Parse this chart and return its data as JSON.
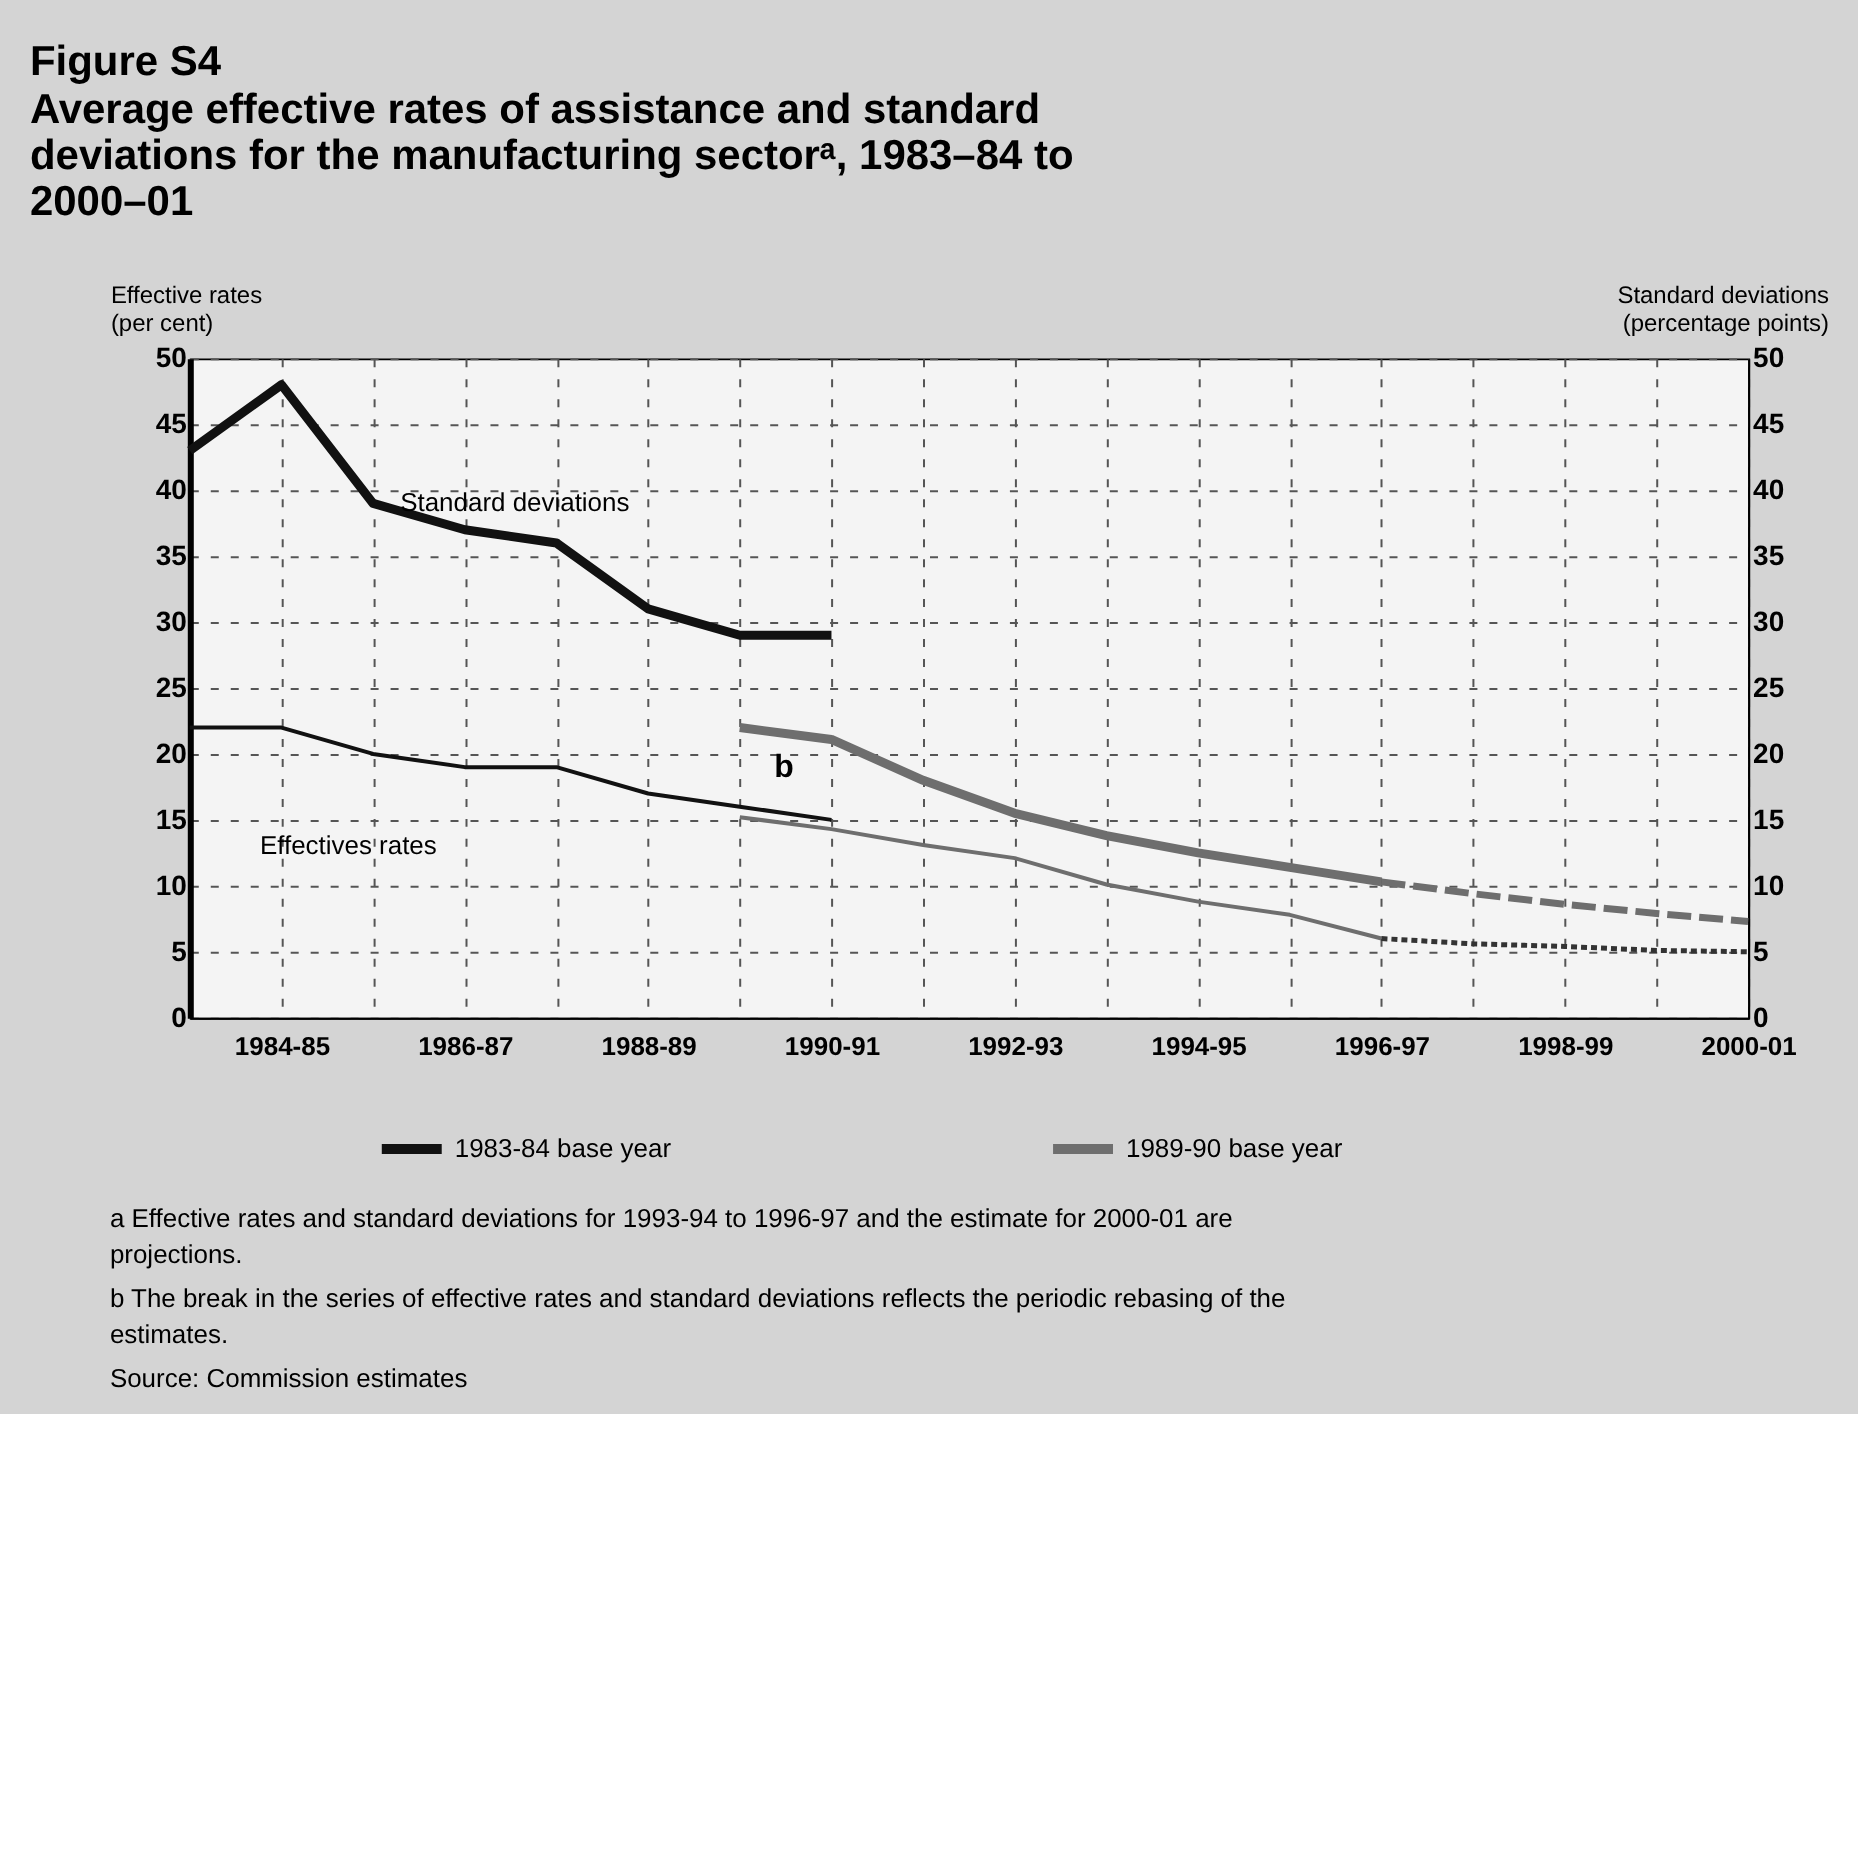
{
  "chart_data": {
    "type": "line",
    "title": "Figure S4",
    "subtitle": "Average effective rates of assistance and standard deviations for the manufacturing sectorᵃ, 1983–84 to 2000–01",
    "ylabel": "Effective rates (per cent)",
    "y2label": "Standard deviations (percentage points)",
    "categories": [
      null,
      "1984-85",
      null,
      "1986-87",
      null,
      "1988-89",
      null,
      "1990-91",
      null,
      "1992-93",
      null,
      "1994-95",
      null,
      "1996-97",
      null,
      "1998-99",
      null,
      "2000-01"
    ],
    "series": [
      {
        "name": "1983-84 base year",
        "color": "#111111",
        "line_style": "solid",
        "values": [
          43,
          48,
          39,
          37,
          36,
          31,
          29,
          29,
          null,
          null,
          null,
          null,
          null,
          null,
          null,
          null,
          null,
          null
        ]
      },
      {
        "color": "#111111",
        "line_style": "solid",
        "values": [
          22,
          22,
          20,
          19,
          19,
          17,
          16,
          15,
          null,
          null,
          null,
          null,
          null,
          null,
          null,
          null,
          null,
          null
        ]
      },
      {
        "name": "1989-90 base year",
        "color": "#6e6e6e",
        "line_style": "solid",
        "values": [
          null,
          null,
          null,
          null,
          null,
          null,
          22,
          21.1,
          18,
          15.5,
          13.8,
          12.5,
          11.4,
          10.3,
          null,
          null,
          null,
          null
        ]
      },
      {
        "color": "#6e6e6e",
        "line_style": "solid",
        "values": [
          null,
          null,
          null,
          null,
          null,
          null,
          15.2,
          14.3,
          13.1,
          12.1,
          10.1,
          8.8,
          7.8,
          6,
          null,
          null,
          null,
          null
        ]
      },
      {
        "color": "#6e6e6e",
        "line_style": "dashed",
        "values": [
          null,
          null,
          null,
          null,
          null,
          null,
          null,
          null,
          null,
          null,
          null,
          null,
          null,
          10.3,
          9.4,
          8.6,
          7.9,
          7.3
        ]
      },
      {
        "color": "#333333",
        "line_style": "dotted",
        "values": [
          null,
          null,
          null,
          null,
          null,
          null,
          null,
          null,
          null,
          null,
          null,
          null,
          null,
          6,
          5.6,
          5.4,
          5.1,
          5
        ]
      }
    ],
    "ylim": [
      0,
      50
    ],
    "yticks": [
      0,
      5,
      10,
      15,
      20,
      25,
      30,
      35,
      40,
      45,
      50
    ],
    "y2lim": [
      0,
      50
    ],
    "y2ticks": [
      0,
      5,
      10,
      15,
      20,
      25,
      30,
      35,
      40,
      45,
      50
    ],
    "grid": true,
    "legend": "bottom",
    "annotations": [
      "Standard deviations",
      "Effectives rates",
      "b",
      "a  Effective rates and standard deviations for 1993-94 to 1996-97 and the estimate for 2000-01 are projections.",
      "b  The break in the series of effective rates and standard deviations reflects the periodic rebasing of the estimates.",
      "Source:  Commission estimates"
    ]
  }
}
